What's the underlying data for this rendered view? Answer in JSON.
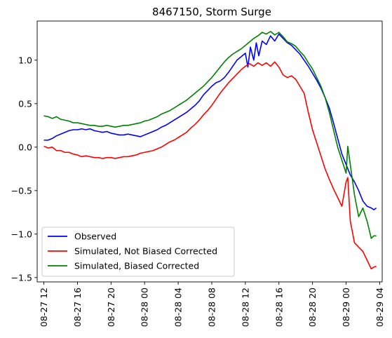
{
  "chart_data": {
    "type": "line",
    "title": "8467150, Storm Surge",
    "xlabel": "",
    "ylabel": "",
    "x_tick_labels": [
      "08-27 12",
      "08-27 16",
      "08-27 20",
      "08-28 00",
      "08-28 04",
      "08-28 08",
      "08-28 12",
      "08-28 16",
      "08-28 20",
      "08-29 00",
      "08-29 04"
    ],
    "x_tick_hours": [
      0,
      4,
      8,
      12,
      16,
      20,
      24,
      28,
      32,
      36,
      40
    ],
    "x_unit": "hours after 08-27 12",
    "y_ticks": [
      1.0,
      0.5,
      0.0,
      -0.5,
      -1.0,
      -1.5
    ],
    "y_tick_labels": [
      "1.0",
      "0.5",
      "0.0",
      "−0.5",
      "−1.0",
      "−1.5"
    ],
    "xlim": [
      -0.8,
      40.3
    ],
    "ylim": [
      -1.55,
      1.45
    ],
    "grid": false,
    "legend_position": "lower-left",
    "series": [
      {
        "name": "Observed",
        "color": "#0000ff",
        "points": [
          [
            0.0,
            0.08
          ],
          [
            0.5,
            0.08
          ],
          [
            1.0,
            0.1
          ],
          [
            1.5,
            0.13
          ],
          [
            2.0,
            0.15
          ],
          [
            2.5,
            0.17
          ],
          [
            3.0,
            0.19
          ],
          [
            3.5,
            0.2
          ],
          [
            4.0,
            0.2
          ],
          [
            4.5,
            0.21
          ],
          [
            5.0,
            0.2
          ],
          [
            5.5,
            0.21
          ],
          [
            6.0,
            0.19
          ],
          [
            6.5,
            0.18
          ],
          [
            7.0,
            0.17
          ],
          [
            7.5,
            0.18
          ],
          [
            8.0,
            0.16
          ],
          [
            8.5,
            0.15
          ],
          [
            9.0,
            0.14
          ],
          [
            9.5,
            0.14
          ],
          [
            10.0,
            0.15
          ],
          [
            10.5,
            0.14
          ],
          [
            11.0,
            0.13
          ],
          [
            11.5,
            0.12
          ],
          [
            12.0,
            0.14
          ],
          [
            12.5,
            0.16
          ],
          [
            13.0,
            0.18
          ],
          [
            13.5,
            0.2
          ],
          [
            14.0,
            0.23
          ],
          [
            14.5,
            0.25
          ],
          [
            15.0,
            0.28
          ],
          [
            15.5,
            0.31
          ],
          [
            16.0,
            0.34
          ],
          [
            16.5,
            0.37
          ],
          [
            17.0,
            0.4
          ],
          [
            17.5,
            0.44
          ],
          [
            18.0,
            0.48
          ],
          [
            18.5,
            0.53
          ],
          [
            19.0,
            0.6
          ],
          [
            19.5,
            0.65
          ],
          [
            20.0,
            0.7
          ],
          [
            20.5,
            0.74
          ],
          [
            21.0,
            0.76
          ],
          [
            21.5,
            0.8
          ],
          [
            22.0,
            0.86
          ],
          [
            22.5,
            0.93
          ],
          [
            23.0,
            1.0
          ],
          [
            23.5,
            1.04
          ],
          [
            24.0,
            1.08
          ],
          [
            24.3,
            0.92
          ],
          [
            24.6,
            1.15
          ],
          [
            25.0,
            1.0
          ],
          [
            25.3,
            1.2
          ],
          [
            25.6,
            1.05
          ],
          [
            26.0,
            1.22
          ],
          [
            26.5,
            1.18
          ],
          [
            27.0,
            1.28
          ],
          [
            27.5,
            1.22
          ],
          [
            28.0,
            1.3
          ],
          [
            28.5,
            1.25
          ],
          [
            29.0,
            1.2
          ],
          [
            29.5,
            1.17
          ],
          [
            30.0,
            1.12
          ],
          [
            30.5,
            1.07
          ],
          [
            31.0,
            1.0
          ],
          [
            31.5,
            0.93
          ],
          [
            32.0,
            0.85
          ],
          [
            32.5,
            0.77
          ],
          [
            33.0,
            0.68
          ],
          [
            33.5,
            0.57
          ],
          [
            34.0,
            0.45
          ],
          [
            34.5,
            0.28
          ],
          [
            35.0,
            0.1
          ],
          [
            35.5,
            -0.08
          ],
          [
            36.0,
            -0.2
          ],
          [
            36.5,
            -0.32
          ],
          [
            37.0,
            -0.4
          ],
          [
            37.5,
            -0.5
          ],
          [
            38.0,
            -0.62
          ],
          [
            38.5,
            -0.68
          ],
          [
            39.0,
            -0.7
          ],
          [
            39.3,
            -0.72
          ],
          [
            39.6,
            -0.7
          ]
        ]
      },
      {
        "name": "Simulated, Not Biased Corrected",
        "color": "#ff0000",
        "points": [
          [
            0.0,
            0.01
          ],
          [
            0.5,
            -0.01
          ],
          [
            1.0,
            0.0
          ],
          [
            1.5,
            -0.04
          ],
          [
            2.0,
            -0.04
          ],
          [
            2.5,
            -0.06
          ],
          [
            3.0,
            -0.06
          ],
          [
            3.5,
            -0.08
          ],
          [
            4.0,
            -0.09
          ],
          [
            4.5,
            -0.11
          ],
          [
            5.0,
            -0.1
          ],
          [
            5.5,
            -0.11
          ],
          [
            6.0,
            -0.12
          ],
          [
            6.5,
            -0.12
          ],
          [
            7.0,
            -0.13
          ],
          [
            7.5,
            -0.12
          ],
          [
            8.0,
            -0.12
          ],
          [
            8.5,
            -0.13
          ],
          [
            9.0,
            -0.12
          ],
          [
            9.5,
            -0.11
          ],
          [
            10.0,
            -0.11
          ],
          [
            10.5,
            -0.1
          ],
          [
            11.0,
            -0.09
          ],
          [
            11.5,
            -0.07
          ],
          [
            12.0,
            -0.06
          ],
          [
            12.5,
            -0.05
          ],
          [
            13.0,
            -0.04
          ],
          [
            13.5,
            -0.02
          ],
          [
            14.0,
            0.0
          ],
          [
            14.5,
            0.03
          ],
          [
            15.0,
            0.06
          ],
          [
            15.5,
            0.08
          ],
          [
            16.0,
            0.11
          ],
          [
            16.5,
            0.14
          ],
          [
            17.0,
            0.17
          ],
          [
            17.5,
            0.22
          ],
          [
            18.0,
            0.26
          ],
          [
            18.5,
            0.31
          ],
          [
            19.0,
            0.37
          ],
          [
            19.5,
            0.42
          ],
          [
            20.0,
            0.48
          ],
          [
            20.5,
            0.55
          ],
          [
            21.0,
            0.62
          ],
          [
            21.5,
            0.68
          ],
          [
            22.0,
            0.74
          ],
          [
            22.5,
            0.79
          ],
          [
            23.0,
            0.84
          ],
          [
            23.5,
            0.89
          ],
          [
            24.0,
            0.93
          ],
          [
            24.5,
            0.96
          ],
          [
            25.0,
            0.93
          ],
          [
            25.5,
            0.97
          ],
          [
            26.0,
            0.94
          ],
          [
            26.5,
            0.97
          ],
          [
            27.0,
            0.93
          ],
          [
            27.5,
            0.98
          ],
          [
            28.0,
            0.92
          ],
          [
            28.5,
            0.83
          ],
          [
            29.0,
            0.8
          ],
          [
            29.5,
            0.82
          ],
          [
            30.0,
            0.78
          ],
          [
            30.5,
            0.7
          ],
          [
            31.0,
            0.62
          ],
          [
            31.5,
            0.4
          ],
          [
            32.0,
            0.2
          ],
          [
            32.5,
            0.05
          ],
          [
            33.0,
            -0.1
          ],
          [
            33.5,
            -0.25
          ],
          [
            34.0,
            -0.37
          ],
          [
            34.5,
            -0.48
          ],
          [
            35.0,
            -0.58
          ],
          [
            35.5,
            -0.68
          ],
          [
            36.0,
            -0.4
          ],
          [
            36.2,
            -0.35
          ],
          [
            36.5,
            -0.85
          ],
          [
            37.0,
            -1.1
          ],
          [
            37.5,
            -1.15
          ],
          [
            38.0,
            -1.2
          ],
          [
            38.5,
            -1.3
          ],
          [
            39.0,
            -1.4
          ],
          [
            39.3,
            -1.38
          ],
          [
            39.6,
            -1.37
          ]
        ]
      },
      {
        "name": "Simulated, Biased Corrected",
        "color": "#008000",
        "points": [
          [
            0.0,
            0.36
          ],
          [
            0.5,
            0.35
          ],
          [
            1.0,
            0.33
          ],
          [
            1.5,
            0.35
          ],
          [
            2.0,
            0.32
          ],
          [
            2.5,
            0.31
          ],
          [
            3.0,
            0.3
          ],
          [
            3.5,
            0.28
          ],
          [
            4.0,
            0.28
          ],
          [
            4.5,
            0.27
          ],
          [
            5.0,
            0.26
          ],
          [
            5.5,
            0.25
          ],
          [
            6.0,
            0.25
          ],
          [
            6.5,
            0.24
          ],
          [
            7.0,
            0.24
          ],
          [
            7.5,
            0.25
          ],
          [
            8.0,
            0.24
          ],
          [
            8.5,
            0.23
          ],
          [
            9.0,
            0.24
          ],
          [
            9.5,
            0.25
          ],
          [
            10.0,
            0.25
          ],
          [
            10.5,
            0.26
          ],
          [
            11.0,
            0.27
          ],
          [
            11.5,
            0.28
          ],
          [
            12.0,
            0.3
          ],
          [
            12.5,
            0.31
          ],
          [
            13.0,
            0.33
          ],
          [
            13.5,
            0.35
          ],
          [
            14.0,
            0.38
          ],
          [
            14.5,
            0.4
          ],
          [
            15.0,
            0.42
          ],
          [
            15.5,
            0.45
          ],
          [
            16.0,
            0.48
          ],
          [
            16.5,
            0.51
          ],
          [
            17.0,
            0.54
          ],
          [
            17.5,
            0.58
          ],
          [
            18.0,
            0.62
          ],
          [
            18.5,
            0.66
          ],
          [
            19.0,
            0.7
          ],
          [
            19.5,
            0.75
          ],
          [
            20.0,
            0.8
          ],
          [
            20.5,
            0.86
          ],
          [
            21.0,
            0.92
          ],
          [
            21.5,
            0.98
          ],
          [
            22.0,
            1.03
          ],
          [
            22.5,
            1.07
          ],
          [
            23.0,
            1.1
          ],
          [
            23.5,
            1.13
          ],
          [
            24.0,
            1.17
          ],
          [
            24.5,
            1.21
          ],
          [
            25.0,
            1.25
          ],
          [
            25.5,
            1.28
          ],
          [
            26.0,
            1.32
          ],
          [
            26.5,
            1.3
          ],
          [
            27.0,
            1.33
          ],
          [
            27.5,
            1.29
          ],
          [
            28.0,
            1.32
          ],
          [
            28.5,
            1.27
          ],
          [
            29.0,
            1.21
          ],
          [
            29.5,
            1.19
          ],
          [
            30.0,
            1.16
          ],
          [
            30.5,
            1.1
          ],
          [
            31.0,
            1.05
          ],
          [
            31.5,
            0.97
          ],
          [
            32.0,
            0.9
          ],
          [
            32.5,
            0.8
          ],
          [
            33.0,
            0.7
          ],
          [
            33.5,
            0.57
          ],
          [
            34.0,
            0.4
          ],
          [
            34.5,
            0.2
          ],
          [
            35.0,
            0.0
          ],
          [
            35.5,
            -0.15
          ],
          [
            36.0,
            -0.3
          ],
          [
            36.2,
            0.01
          ],
          [
            36.5,
            -0.2
          ],
          [
            37.0,
            -0.55
          ],
          [
            37.5,
            -0.8
          ],
          [
            38.0,
            -0.7
          ],
          [
            38.5,
            -0.85
          ],
          [
            39.0,
            -1.05
          ],
          [
            39.3,
            -1.02
          ],
          [
            39.6,
            -1.02
          ]
        ]
      }
    ]
  }
}
